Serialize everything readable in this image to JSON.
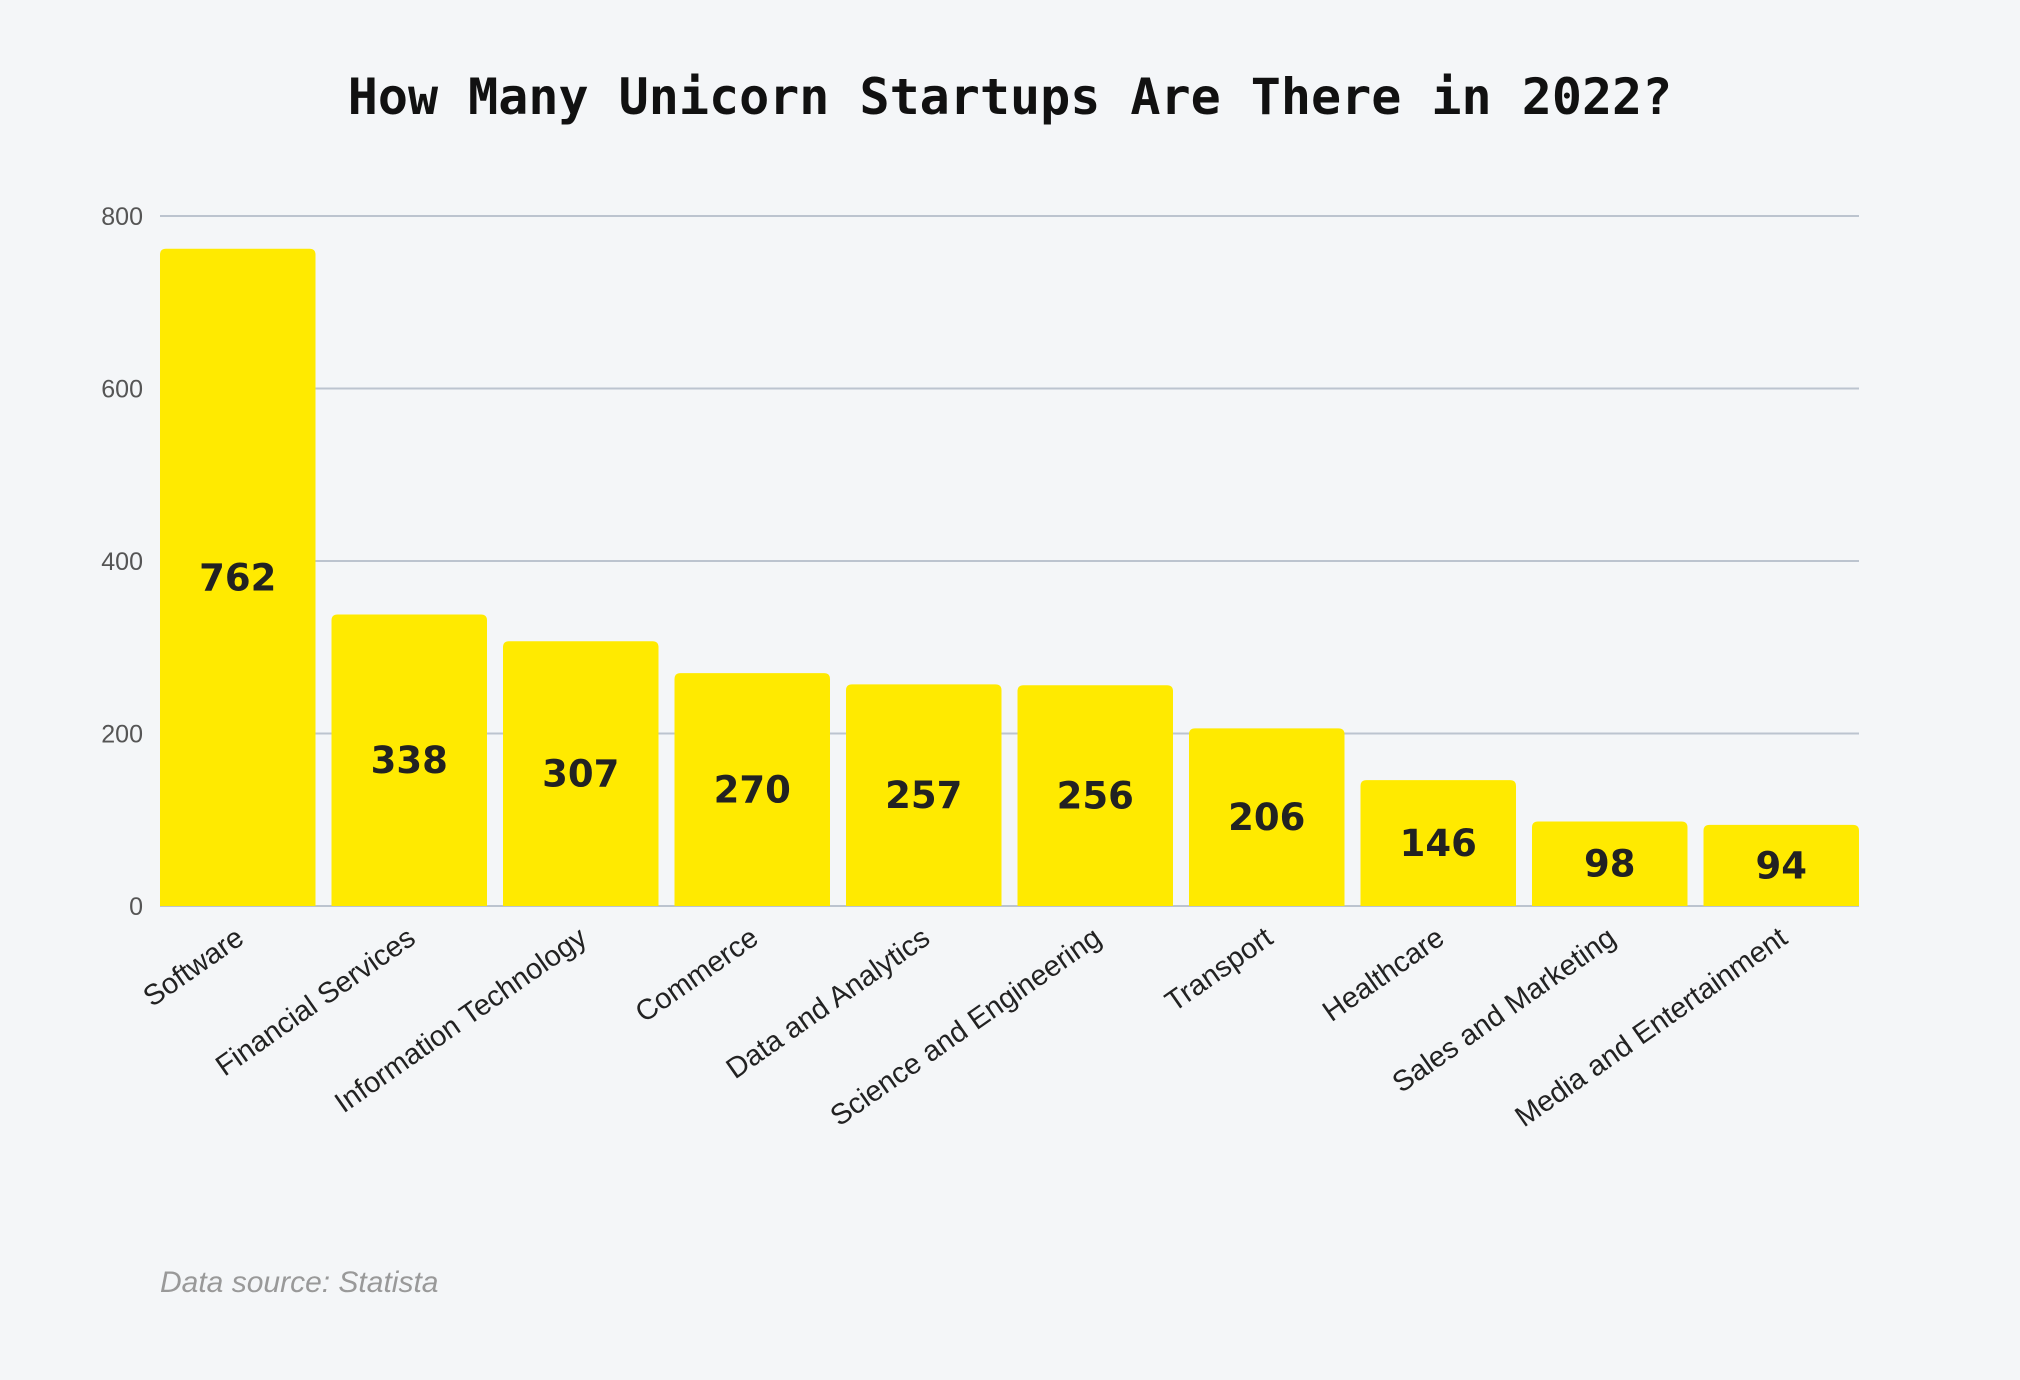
{
  "chart_data": {
    "type": "bar",
    "title": "How Many Unicorn Startups Are There in 2022?",
    "xlabel": "",
    "ylabel": "",
    "ylim": [
      0,
      800
    ],
    "yticks": [
      0,
      200,
      400,
      600,
      800
    ],
    "grid": true,
    "categories": [
      "Software",
      "Financial Services",
      "Information Technology",
      "Commerce",
      "Data and Analytics",
      "Science and Engineering",
      "Transport",
      "Healthcare",
      "Sales and Marketing",
      "Media and Entertainment"
    ],
    "values": [
      762,
      338,
      307,
      270,
      257,
      256,
      206,
      146,
      98,
      94
    ],
    "value_labels": [
      "762",
      "338",
      "307",
      "270",
      "257",
      "256",
      "206",
      "146",
      "98",
      "94"
    ],
    "bar_color": "#ffea00",
    "grid_color": "#bcc4cf",
    "source": "Data source: Statista"
  }
}
